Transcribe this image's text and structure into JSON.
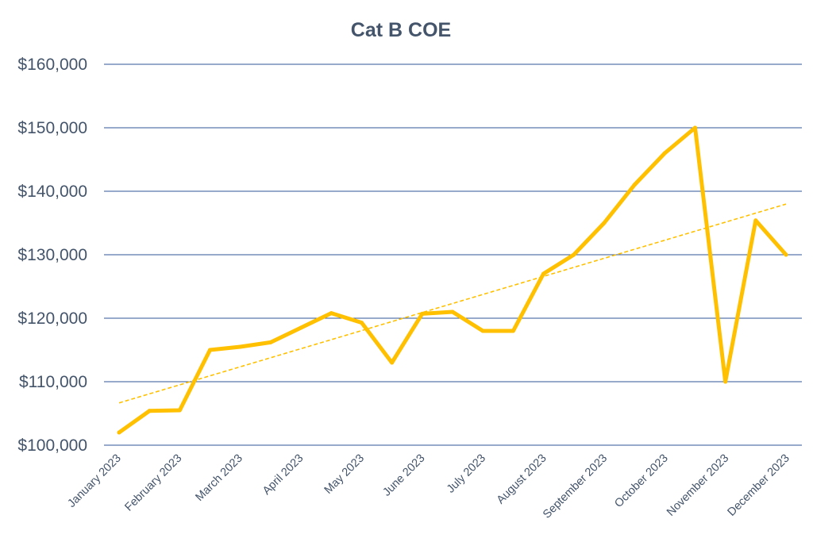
{
  "chart_data": {
    "type": "line",
    "title": "Cat B COE",
    "xlabel": "",
    "ylabel": "",
    "ylim": [
      100000,
      160000
    ],
    "y_ticks": [
      100000,
      110000,
      120000,
      130000,
      140000,
      150000,
      160000
    ],
    "y_tick_labels": [
      "$100,000",
      "$110,000",
      "$120,000",
      "$130,000",
      "$140,000",
      "$150,000",
      "$160,000"
    ],
    "x_tick_labels": [
      "January 2023",
      "February 2023",
      "March 2023",
      "April 2023",
      "May 2023",
      "June 2023",
      "July 2023",
      "August 2023",
      "September 2023",
      "October 2023",
      "November 2023",
      "December 2023"
    ],
    "grid": true,
    "legend": "none",
    "series": [
      {
        "values": [
          102000,
          105400,
          105500,
          115000,
          115500,
          116200,
          118500,
          120800,
          119300,
          113000,
          120700,
          121000,
          118000,
          118000,
          127000,
          130000,
          135000,
          141000,
          146000,
          150000,
          110000,
          135400,
          130000
        ],
        "color": "#ffc000"
      }
    ],
    "trendline": {
      "type": "linear",
      "color": "#ffc000",
      "style": "dashed"
    },
    "colors": {
      "gridline": "#2f5597",
      "text": "#44546a"
    }
  }
}
